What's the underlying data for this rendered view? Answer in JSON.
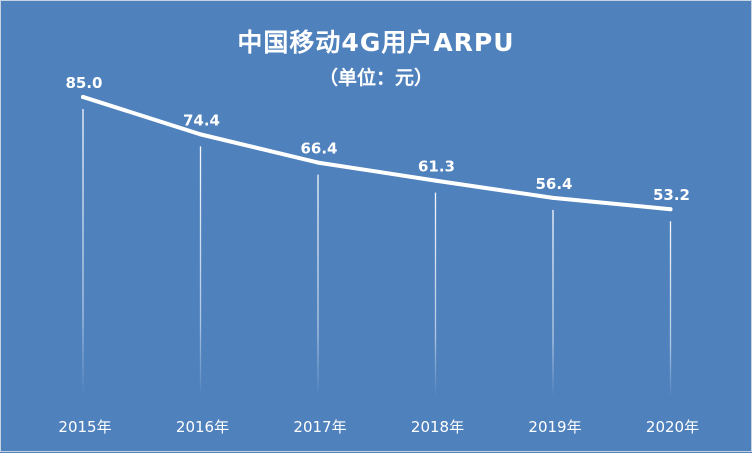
{
  "chart_data": {
    "type": "line",
    "title": "中国移动4G用户ARPU",
    "subtitle": "（单位：元）",
    "categories": [
      "2015年",
      "2016年",
      "2017年",
      "2018年",
      "2019年",
      "2020年"
    ],
    "series": [
      {
        "values": [
          85.0,
          74.4,
          66.4,
          61.3,
          56.4,
          53.2
        ]
      }
    ],
    "data_labels": [
      "85.0",
      "74.4",
      "66.4",
      "61.3",
      "56.4",
      "53.2"
    ],
    "ylim": [
      0,
      100
    ],
    "grid": false,
    "drop_lines": true,
    "colors": {
      "background": "#4f81bd",
      "line": "#ffffff",
      "text": "#ffffff"
    }
  }
}
